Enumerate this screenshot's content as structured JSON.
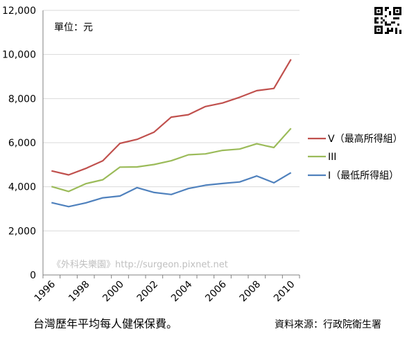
{
  "chart_data": {
    "type": "line",
    "x": [
      1996,
      1997,
      1998,
      1999,
      2000,
      2001,
      2002,
      2003,
      2004,
      2005,
      2006,
      2007,
      2008,
      2009,
      2010
    ],
    "x_tick_labels": [
      "1996",
      "1998",
      "2000",
      "2002",
      "2004",
      "2006",
      "2008",
      "2010"
    ],
    "ylim": [
      0,
      12000
    ],
    "y_tick_labels": [
      "0",
      "2,000",
      "4,000",
      "6,000",
      "8,000",
      "10,000",
      "12,000"
    ],
    "grid": "horizontal",
    "legend_position": "right",
    "unit_label": "單位：元",
    "series": [
      {
        "name": "V（最高所得組）",
        "color": "#c0504d",
        "values": [
          4720,
          4540,
          4830,
          5180,
          5970,
          6150,
          6480,
          7160,
          7270,
          7640,
          7800,
          8060,
          8360,
          8460,
          9780
        ]
      },
      {
        "name": "III",
        "color": "#9bbb59",
        "values": [
          4010,
          3790,
          4140,
          4320,
          4890,
          4900,
          5010,
          5180,
          5450,
          5490,
          5650,
          5710,
          5950,
          5780,
          6650
        ]
      },
      {
        "name": "I（最低所得組）",
        "color": "#4f81bd",
        "values": [
          3280,
          3100,
          3270,
          3500,
          3580,
          3960,
          3740,
          3650,
          3920,
          4070,
          4150,
          4220,
          4490,
          4180,
          4640
        ]
      }
    ]
  },
  "watermark": "《外科失樂園》http://surgeon.pixnet.net",
  "caption": "台灣歷年平均每人健保保費。",
  "source": "資料來源：行政院衛生署",
  "colors": {
    "gridline": "#d9d9d9",
    "axis": "#808080",
    "watermark": "#bfbfbf"
  }
}
